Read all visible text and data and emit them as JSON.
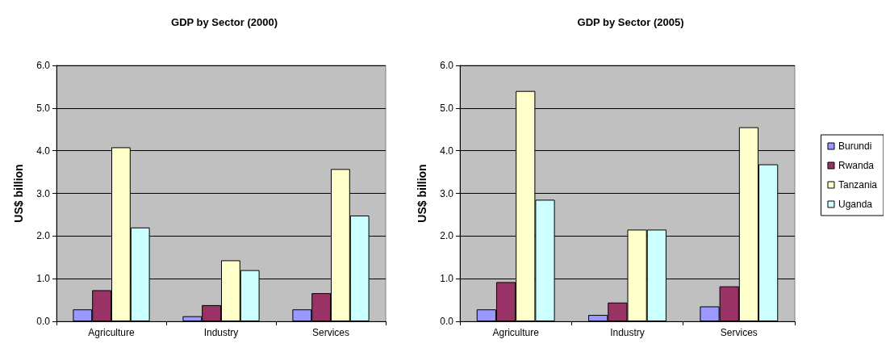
{
  "chart_data": [
    {
      "type": "bar",
      "title": "GDP by Sector (2000)",
      "ylabel": "US$ billion",
      "categories": [
        "Agriculture",
        "Industry",
        "Services"
      ],
      "series": [
        {
          "color": "#9999ff",
          "values": [
            0.28,
            0.12,
            0.28
          ]
        },
        {
          "color": "#993366",
          "values": [
            0.73,
            0.38,
            0.66
          ]
        },
        {
          "color": "#ffffcc",
          "values": [
            4.08,
            1.43,
            3.57
          ]
        },
        {
          "color": "#ccffff",
          "values": [
            2.2,
            1.2,
            2.48
          ]
        }
      ],
      "ylim": [
        0,
        6
      ],
      "yticks": [
        {
          "value": 0,
          "label": "0.0"
        },
        {
          "value": 1,
          "label": "1.0"
        },
        {
          "value": 2,
          "label": "2.0"
        },
        {
          "value": 3,
          "label": "3.0"
        },
        {
          "value": 4,
          "label": "4.0"
        },
        {
          "value": 5,
          "label": "5.0"
        },
        {
          "value": 6,
          "label": "6.0"
        }
      ],
      "grid": "y"
    },
    {
      "type": "bar",
      "title": "GDP by Sector (2005)",
      "ylabel": "US$ billion",
      "categories": [
        "Agriculture",
        "Industry",
        "Services"
      ],
      "series": [
        {
          "name": "Burundi",
          "color": "#9999ff",
          "values": [
            0.28,
            0.15,
            0.35
          ]
        },
        {
          "name": "Rwanda",
          "color": "#993366",
          "values": [
            0.92,
            0.44,
            0.82
          ]
        },
        {
          "name": "Tanzania",
          "color": "#ffffcc",
          "values": [
            5.4,
            2.15,
            4.55
          ]
        },
        {
          "name": "Uganda",
          "color": "#ccffff",
          "values": [
            2.85,
            2.15,
            3.68
          ]
        }
      ],
      "ylim": [
        0,
        6
      ],
      "yticks": [
        {
          "value": 0,
          "label": "0.0"
        },
        {
          "value": 1,
          "label": "1.0"
        },
        {
          "value": 2,
          "label": "2.0"
        },
        {
          "value": 3,
          "label": "3.0"
        },
        {
          "value": 4,
          "label": "4.0"
        },
        {
          "value": 5,
          "label": "5.0"
        },
        {
          "value": 6,
          "label": "6.0"
        }
      ],
      "grid": "y",
      "legend": "right"
    }
  ]
}
